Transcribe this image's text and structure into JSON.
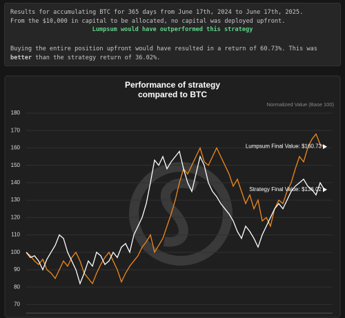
{
  "summary": {
    "line1": "Results for accumulating BTC for 365 days from June 17th, 2024 to June 17th, 2025.",
    "line2": "From the $10,000 in capital to be allocated, no capital was deployed upfront.",
    "verdict": "Lumpsum would have outperformed this strategy",
    "detail_before": "Buying the entire position upfront would have resulted in a return of 60.73%. This was ",
    "detail_bold": "better",
    "detail_after": " than the strategy return of 36.02%."
  },
  "chart_data": {
    "type": "line",
    "title": "Performance of strategy compared to BTC",
    "y_label": "Normalized Value (Base 100)",
    "ylim": [
      65,
      180
    ],
    "yticks": [
      70,
      80,
      90,
      100,
      110,
      120,
      130,
      140,
      150,
      160,
      170,
      180
    ],
    "grid": true,
    "series": [
      {
        "color": "#f28a1e",
        "values": [
          100,
          98,
          95,
          93,
          96,
          90,
          88,
          85,
          90,
          95,
          92,
          97,
          100,
          95,
          88,
          85,
          82,
          88,
          93,
          97,
          100,
          95,
          90,
          83,
          88,
          92,
          95,
          98,
          103,
          106,
          110,
          100,
          104,
          108,
          115,
          122,
          130,
          140,
          148,
          145,
          150,
          155,
          160,
          152,
          150,
          155,
          160,
          155,
          150,
          145,
          138,
          142,
          135,
          128,
          133,
          125,
          130,
          118,
          120,
          115,
          125,
          130,
          128,
          135,
          140,
          148,
          155,
          152,
          160,
          165,
          168,
          162,
          160.73
        ]
      },
      {
        "color": "#ffffff",
        "values": [
          100,
          97,
          98,
          95,
          90,
          96,
          100,
          104,
          110,
          108,
          100,
          95,
          90,
          82,
          88,
          95,
          92,
          100,
          98,
          93,
          95,
          100,
          97,
          103,
          105,
          100,
          110,
          115,
          120,
          128,
          140,
          153,
          150,
          155,
          148,
          152,
          155,
          158,
          148,
          140,
          135,
          145,
          155,
          150,
          140,
          135,
          132,
          128,
          125,
          122,
          118,
          112,
          108,
          115,
          112,
          108,
          103,
          110,
          115,
          120,
          125,
          128,
          125,
          130,
          135,
          138,
          140,
          142,
          138,
          136,
          133,
          140,
          136.02
        ]
      }
    ],
    "annotations": [
      {
        "text": "Lumpsum Final Value: $160.73"
      },
      {
        "text": "Strategy Final Value: $136.02"
      }
    ]
  }
}
